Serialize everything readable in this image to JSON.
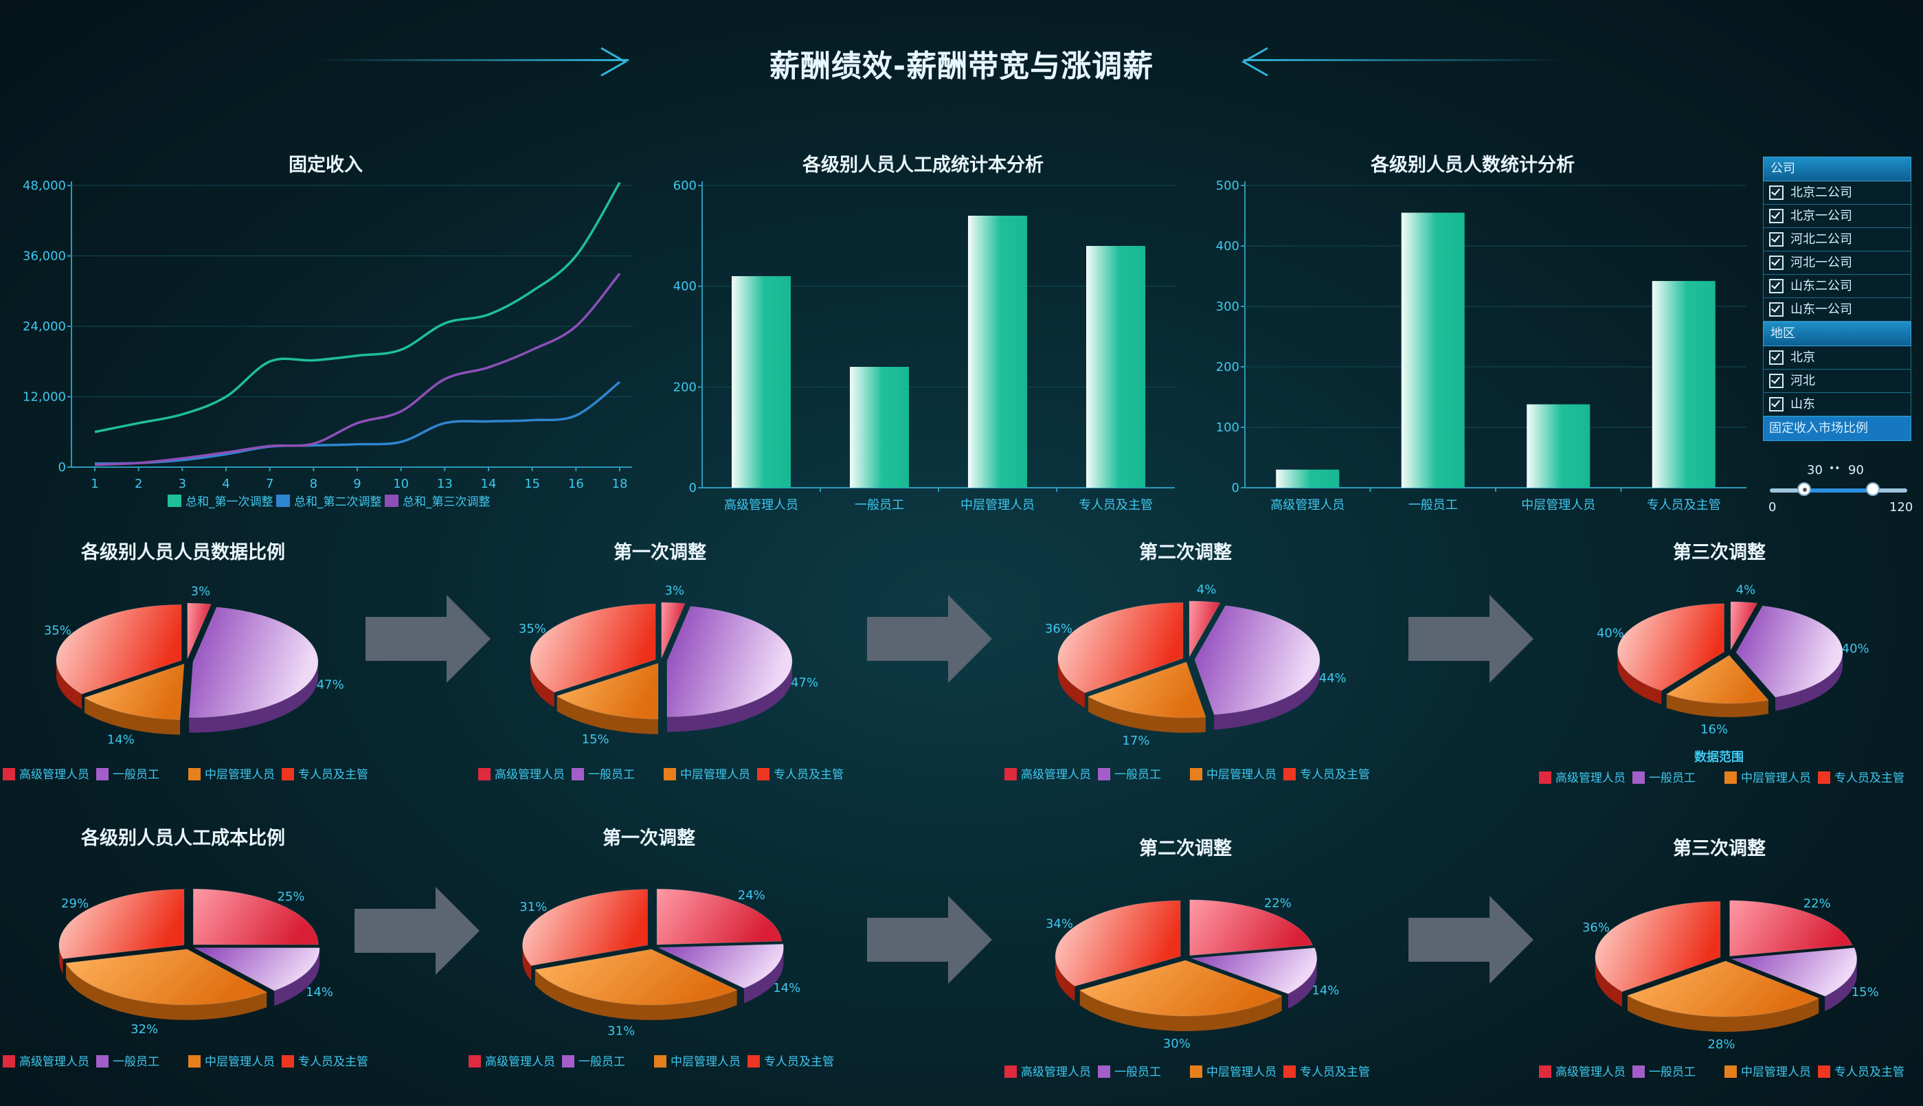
{
  "header": {
    "title": "薪酬绩效-薪酬带宽与涨调薪"
  },
  "line_chart": {
    "title": "固定收入"
  },
  "bar_cost": {
    "title": "各级别人员人工成统计本分析"
  },
  "bar_count": {
    "title": "各级别人员人数统计分析"
  },
  "row1": {
    "main_title": "各级别人员人员数据比例",
    "adj1_title": "第一次调整",
    "adj2_title": "第二次调整",
    "adj3_title": "第三次调整",
    "range_label": "数据范围"
  },
  "row2": {
    "main_title": "各级别人员人工成本比例",
    "adj1_title": "第一次调整",
    "adj2_title": "第二次调整",
    "adj3_title": "第三次调整"
  },
  "filter": {
    "company_header": "公司",
    "companies": [
      "北京二公司",
      "北京一公司",
      "河北二公司",
      "河北一公司",
      "山东二公司",
      "山东一公司"
    ],
    "region_header": "地区",
    "regions": [
      "北京",
      "河北",
      "山东"
    ],
    "footer": "固定收入市场比例"
  },
  "slider": {
    "low": 30,
    "high": 90,
    "sep": "••",
    "min": 0,
    "max": 120
  },
  "colors": {
    "green": "#1fbf9a",
    "blue": "#2f86d0",
    "purple": "#8e4fb8",
    "red": "#e02a3e",
    "violet": "#a45ec9",
    "orange": "#e77f1c",
    "crimson": "#ef3621"
  },
  "chart_data": [
    {
      "type": "line",
      "title": "固定收入",
      "x": [
        "1",
        "2",
        "3",
        "4",
        "7",
        "8",
        "9",
        "10",
        "13",
        "14",
        "15",
        "16",
        "18"
      ],
      "yticks": [
        "0",
        "12,000",
        "24,000",
        "36,000",
        "48,000"
      ],
      "ylim": [
        0,
        48000
      ],
      "series": [
        {
          "name": "总和_第一次调整",
          "values": [
            6000,
            7500,
            9000,
            12000,
            18000,
            18200,
            19000,
            20000,
            24500,
            26000,
            30000,
            36000,
            48500
          ]
        },
        {
          "name": "总和_第二次调整",
          "values": [
            600,
            700,
            1200,
            2200,
            3500,
            3700,
            3900,
            4300,
            7500,
            7800,
            8000,
            8800,
            14500
          ]
        },
        {
          "name": "总和_第三次调整",
          "values": [
            400,
            700,
            1500,
            2500,
            3600,
            4000,
            7500,
            9500,
            15000,
            17000,
            20000,
            24000,
            33000
          ]
        }
      ]
    },
    {
      "type": "bar",
      "title": "各级别人员人工成统计本分析",
      "categories": [
        "高级管理人员",
        "一般员工",
        "中层管理人员",
        "专人员及主管"
      ],
      "values": [
        420,
        240,
        540,
        480
      ],
      "yticks": [
        "0",
        "200",
        "400",
        "600"
      ],
      "ylim": [
        0,
        600
      ]
    },
    {
      "type": "bar",
      "title": "各级别人员人数统计分析",
      "categories": [
        "高级管理人员",
        "一般员工",
        "中层管理人员",
        "专人员及主管"
      ],
      "values": [
        30,
        455,
        138,
        342
      ],
      "yticks": [
        "0",
        "100",
        "200",
        "300",
        "400",
        "500"
      ],
      "ylim": [
        0,
        500
      ]
    },
    {
      "type": "pie",
      "title": "各级别人员人员数据比例",
      "labels": [
        "高级管理人员",
        "一般员工",
        "中层管理人员",
        "专人员及主管"
      ],
      "values": [
        3,
        47,
        14,
        35
      ],
      "value_labels": [
        "3%",
        "47%",
        "14%",
        "35%"
      ]
    },
    {
      "type": "pie",
      "title": "第一次调整",
      "labels": [
        "高级管理人员",
        "一般员工",
        "中层管理人员",
        "专人员及主管"
      ],
      "values": [
        3,
        47,
        15,
        35
      ],
      "value_labels": [
        "3%",
        "47%",
        "15%",
        "35%"
      ]
    },
    {
      "type": "pie",
      "title": "第二次调整",
      "labels": [
        "高级管理人员",
        "一般员工",
        "中层管理人员",
        "专人员及主管"
      ],
      "values": [
        4,
        44,
        17,
        36
      ],
      "value_labels": [
        "4%",
        "44%",
        "17%",
        "36%"
      ]
    },
    {
      "type": "pie",
      "title": "第三次调整",
      "labels": [
        "高级管理人员",
        "一般员工",
        "中层管理人员",
        "专人员及主管"
      ],
      "values": [
        4,
        40,
        16,
        40
      ],
      "value_labels": [
        "4%",
        "40%",
        "16%",
        "40%"
      ]
    },
    {
      "type": "pie",
      "title": "各级别人员人工成本比例",
      "labels": [
        "高级管理人员",
        "一般员工",
        "中层管理人员",
        "专人员及主管"
      ],
      "values": [
        25,
        14,
        32,
        29
      ],
      "value_labels": [
        "25%",
        "14%",
        "32%",
        "29%"
      ]
    },
    {
      "type": "pie",
      "title": "第一次调整",
      "labels": [
        "高级管理人员",
        "一般员工",
        "中层管理人员",
        "专人员及主管"
      ],
      "values": [
        24,
        14,
        31,
        31
      ],
      "value_labels": [
        "24%",
        "14%",
        "31%",
        "31%"
      ]
    },
    {
      "type": "pie",
      "title": "第二次调整",
      "labels": [
        "高级管理人员",
        "一般员工",
        "中层管理人员",
        "专人员及主管"
      ],
      "values": [
        22,
        14,
        30,
        34
      ],
      "value_labels": [
        "22%",
        "14%",
        "30%",
        "34%"
      ]
    },
    {
      "type": "pie",
      "title": "第三次调整",
      "labels": [
        "高级管理人员",
        "一般员工",
        "中层管理人员",
        "专人员及主管"
      ],
      "values": [
        22,
        15,
        28,
        36
      ],
      "value_labels": [
        "22%",
        "15%",
        "28%",
        "36%"
      ]
    }
  ]
}
